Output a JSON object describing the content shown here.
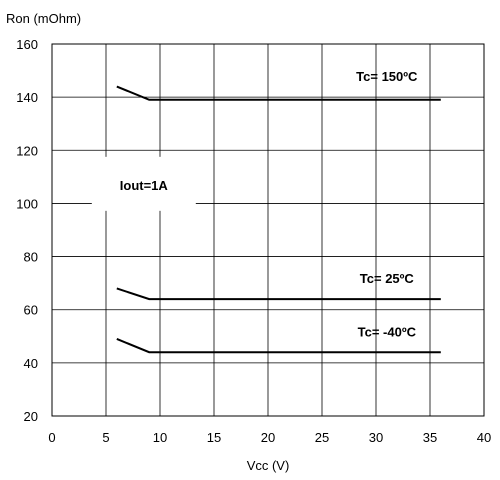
{
  "chart_data": {
    "type": "line",
    "title": "",
    "xlabel": "Vcc (V)",
    "ylabel": "Ron (mOhm)",
    "xlim": [
      0,
      40
    ],
    "ylim": [
      20,
      160
    ],
    "xticks": [
      0,
      5,
      10,
      15,
      20,
      25,
      30,
      35,
      40
    ],
    "yticks": [
      20,
      40,
      60,
      80,
      100,
      120,
      140,
      160
    ],
    "grid": true,
    "line_color": "#000000",
    "grid_color": "#000000",
    "series": [
      {
        "name": "Tc= 150ºC",
        "x": [
          6,
          9,
          36
        ],
        "y": [
          144,
          139,
          139
        ]
      },
      {
        "name": "Tc= 25ºC",
        "x": [
          6,
          9,
          36
        ],
        "y": [
          68,
          64,
          64
        ]
      },
      {
        "name": "Tc= -40ºC",
        "x": [
          6,
          9,
          36
        ],
        "y": [
          49,
          44,
          44
        ]
      }
    ],
    "annotations": [
      {
        "text": "Tc= 150ºC",
        "x": 31,
        "y": 146
      },
      {
        "text": "Tc= 25ºC",
        "x": 31,
        "y": 70
      },
      {
        "text": "Tc= -40ºC",
        "x": 31,
        "y": 50
      },
      {
        "text": "Iout=1A",
        "x": 8.5,
        "y": 107,
        "boxed": true
      }
    ]
  }
}
